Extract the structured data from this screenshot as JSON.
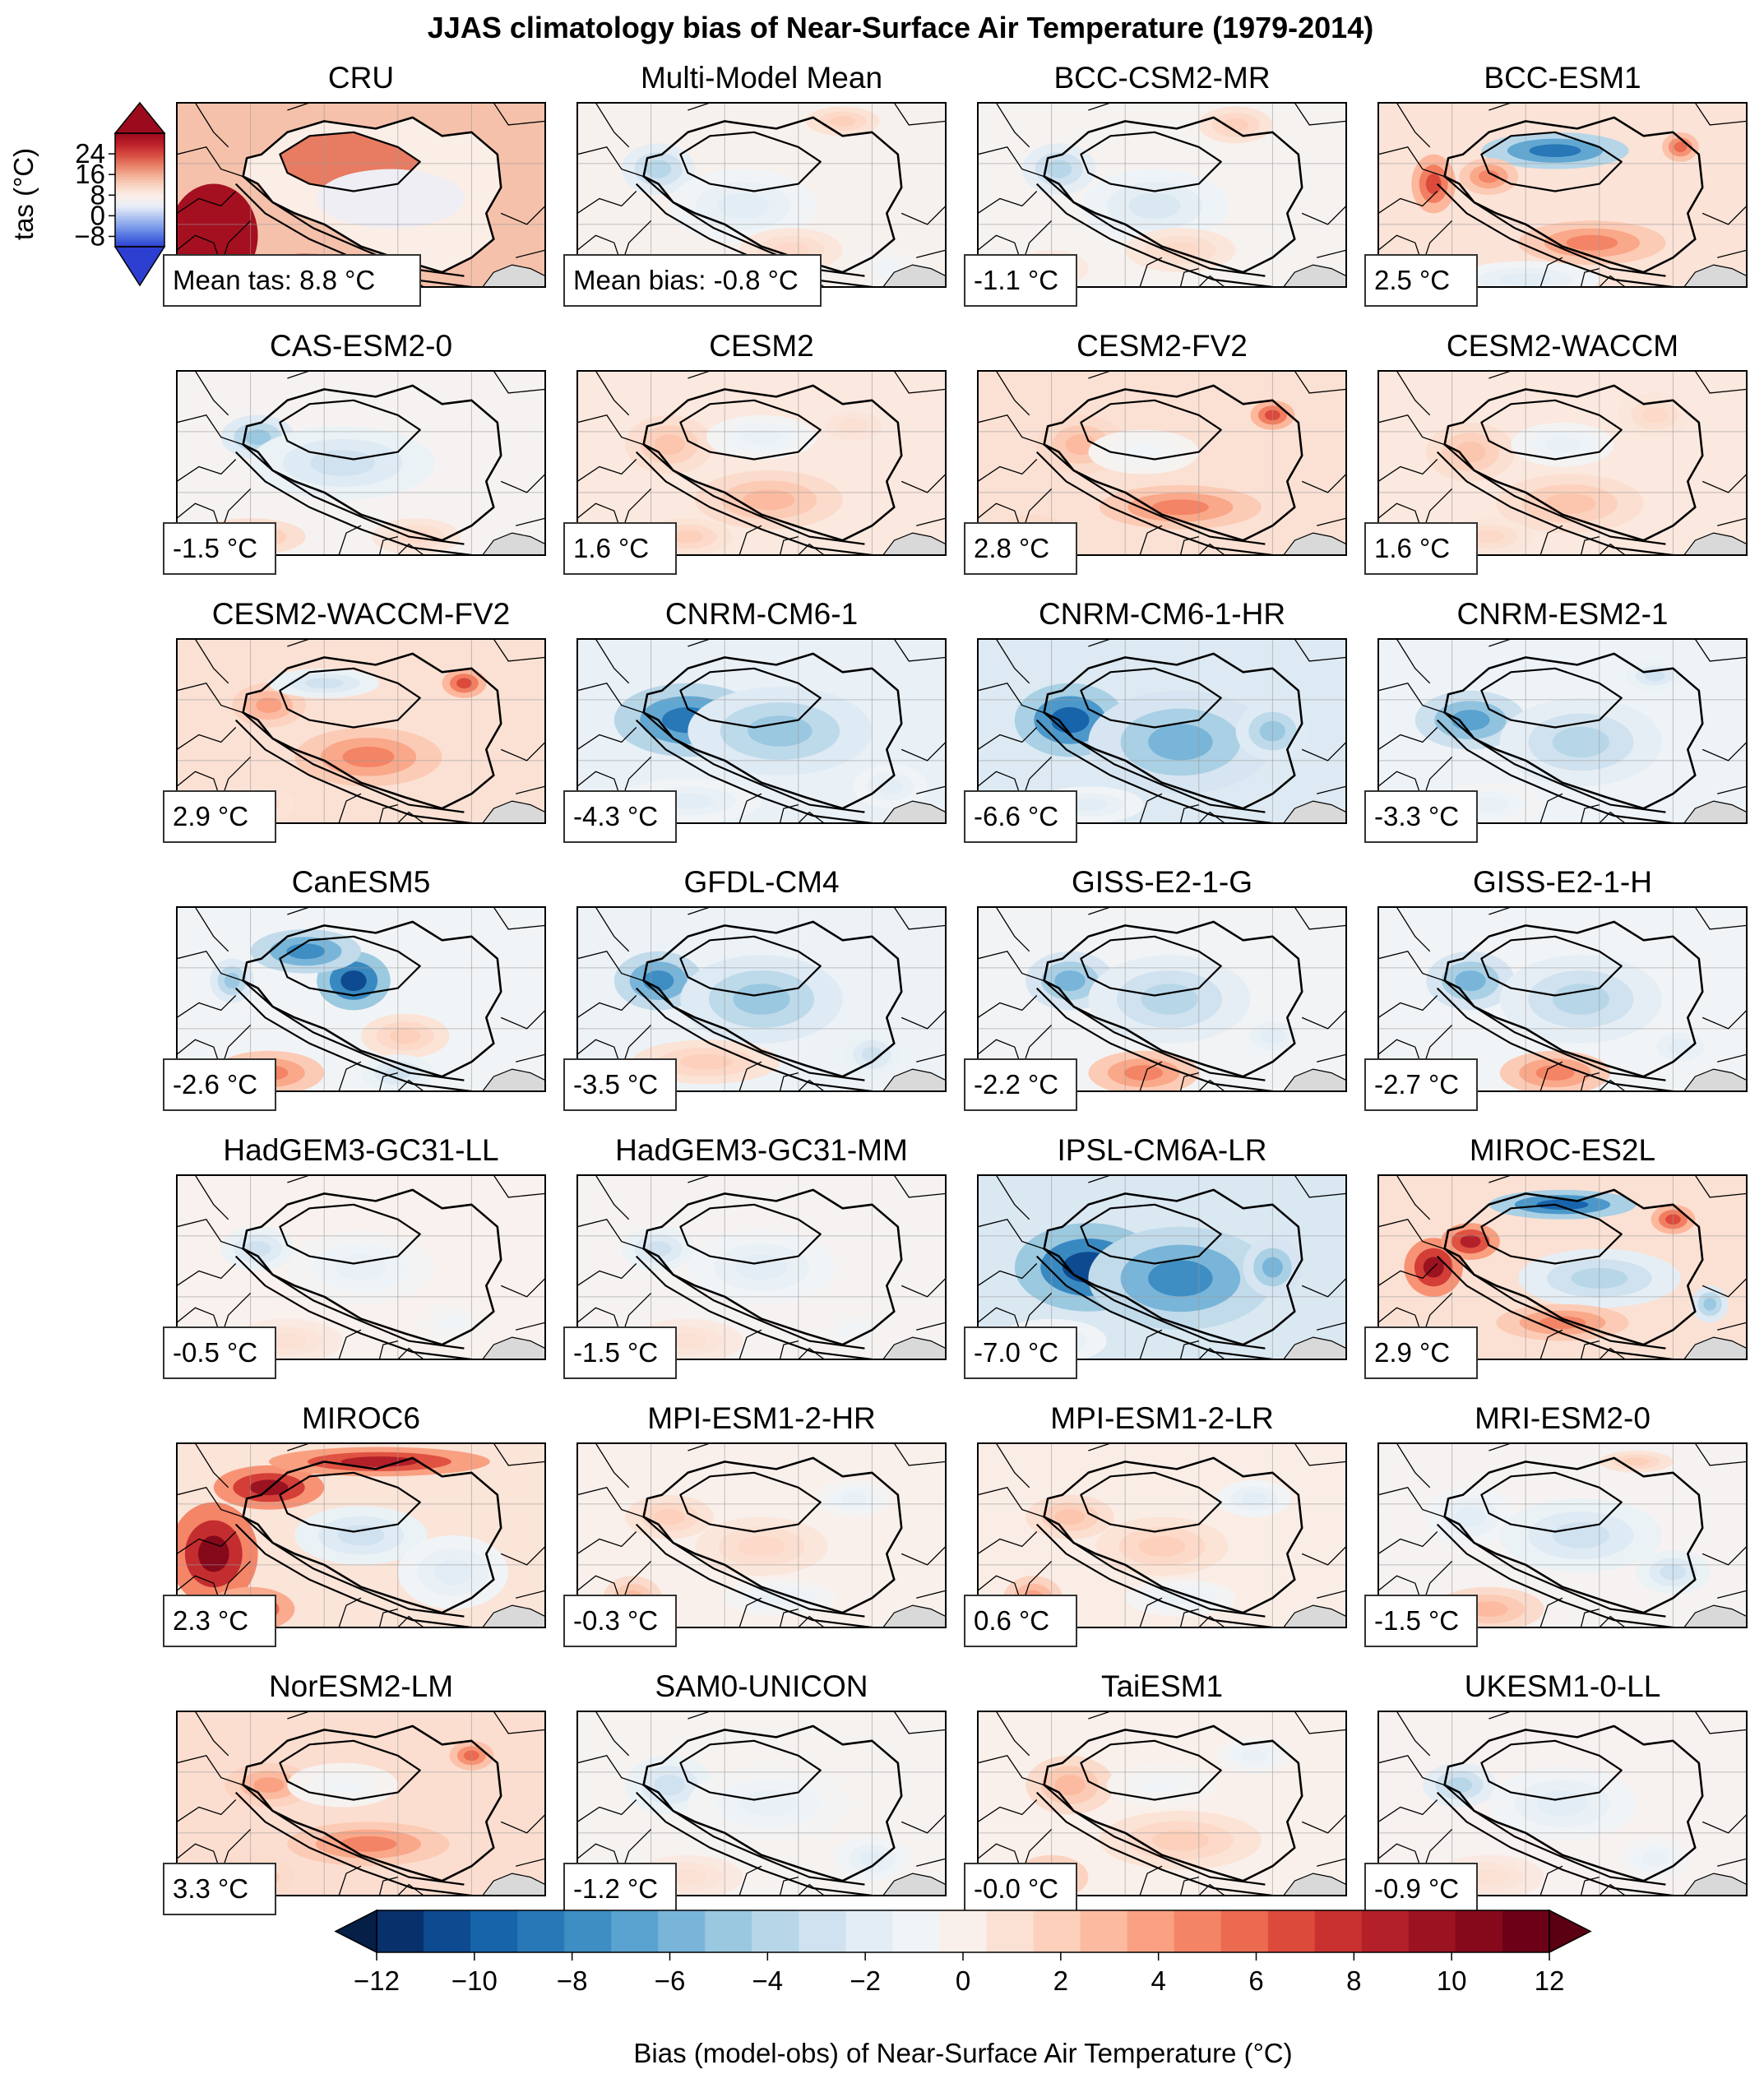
{
  "chart_data": {
    "type": "heatmap",
    "title": "JJAS climatology bias of Near-Surface Air Temperature (1979-2014)",
    "reference_colorbar": {
      "label": "tas (°C)",
      "ticks": [
        "24",
        "16",
        "8",
        "0",
        "−8"
      ],
      "tick_values": [
        24,
        16,
        8,
        0,
        -8
      ],
      "range": [
        -12,
        32
      ],
      "extend": "both"
    },
    "bias_colorbar": {
      "label": "Bias (model-obs) of Near-Surface Air Temperature (°C)",
      "ticks": [
        "−12",
        "−10",
        "−8",
        "−6",
        "−4",
        "−2",
        "0",
        "2",
        "4",
        "6",
        "8",
        "10",
        "12"
      ],
      "tick_values": [
        -12,
        -10,
        -8,
        -6,
        -4,
        -2,
        0,
        2,
        4,
        6,
        8,
        10,
        12
      ],
      "range": [
        -12,
        12
      ],
      "levels": 26,
      "extend": "both"
    },
    "panels": [
      {
        "name": "CRU",
        "label": "Mean tas: 8.8 °C",
        "value": 8.8
      },
      {
        "name": "Multi-Model Mean",
        "label": "Mean bias: -0.8 °C",
        "value": -0.8
      },
      {
        "name": "BCC-CSM2-MR",
        "label": "-1.1 °C",
        "value": -1.1
      },
      {
        "name": "BCC-ESM1",
        "label": "2.5 °C",
        "value": 2.5
      },
      {
        "name": "CAS-ESM2-0",
        "label": "-1.5 °C",
        "value": -1.5
      },
      {
        "name": "CESM2",
        "label": "1.6 °C",
        "value": 1.6
      },
      {
        "name": "CESM2-FV2",
        "label": "2.8 °C",
        "value": 2.8
      },
      {
        "name": "CESM2-WACCM",
        "label": "1.6 °C",
        "value": 1.6
      },
      {
        "name": "CESM2-WACCM-FV2",
        "label": "2.9 °C",
        "value": 2.9
      },
      {
        "name": "CNRM-CM6-1",
        "label": "-4.3 °C",
        "value": -4.3
      },
      {
        "name": "CNRM-CM6-1-HR",
        "label": "-6.6 °C",
        "value": -6.6
      },
      {
        "name": "CNRM-ESM2-1",
        "label": "-3.3 °C",
        "value": -3.3
      },
      {
        "name": "CanESM5",
        "label": "-2.6 °C",
        "value": -2.6
      },
      {
        "name": "GFDL-CM4",
        "label": "-3.5 °C",
        "value": -3.5
      },
      {
        "name": "GISS-E2-1-G",
        "label": "-2.2 °C",
        "value": -2.2
      },
      {
        "name": "GISS-E2-1-H",
        "label": "-2.7 °C",
        "value": -2.7
      },
      {
        "name": "HadGEM3-GC31-LL",
        "label": "-0.5 °C",
        "value": -0.5
      },
      {
        "name": "HadGEM3-GC31-MM",
        "label": "-1.5 °C",
        "value": -1.5
      },
      {
        "name": "IPSL-CM6A-LR",
        "label": "-7.0 °C",
        "value": -7.0
      },
      {
        "name": "MIROC-ES2L",
        "label": "2.9 °C",
        "value": 2.9
      },
      {
        "name": "MIROC6",
        "label": "2.3 °C",
        "value": 2.3
      },
      {
        "name": "MPI-ESM1-2-HR",
        "label": "-0.3 °C",
        "value": -0.3
      },
      {
        "name": "MPI-ESM1-2-LR",
        "label": "0.6 °C",
        "value": 0.6
      },
      {
        "name": "MRI-ESM2-0",
        "label": "-1.5 °C",
        "value": -1.5
      },
      {
        "name": "NorESM2-LM",
        "label": "3.3 °C",
        "value": 3.3
      },
      {
        "name": "SAM0-UNICON",
        "label": "-1.2 °C",
        "value": -1.2
      },
      {
        "name": "TaiESM1",
        "label": "-0.0 °C",
        "value": -0.0
      },
      {
        "name": "UKESM1-0-LL",
        "label": "-0.9 °C",
        "value": -0.9
      }
    ],
    "colors": {
      "bias_scale": [
        "#08306b",
        "#0d4a8f",
        "#1764ab",
        "#2878b8",
        "#3e8ec4",
        "#5aa2cf",
        "#79b5d9",
        "#9ac8e0",
        "#b7d7e8",
        "#d0e2ef",
        "#e3edf5",
        "#f0f4f7",
        "#faf0eb",
        "#fbe1d4",
        "#fcd0bb",
        "#fcbba1",
        "#f9a182",
        "#f48466",
        "#eb6a50",
        "#dc4a3c",
        "#c93131",
        "#b3202a",
        "#9b1221",
        "#85081b",
        "#6b0016"
      ],
      "ref_scale": [
        "#2c3fd1",
        "#4e6fe0",
        "#7f9eea",
        "#b6c8f2",
        "#e9eef8",
        "#fbeee6",
        "#f8d4c2",
        "#f2ad93",
        "#e77c62",
        "#d64a3e",
        "#bd1f2a",
        "#9c0b1d"
      ],
      "land_grey": "#d9d9d9"
    }
  }
}
